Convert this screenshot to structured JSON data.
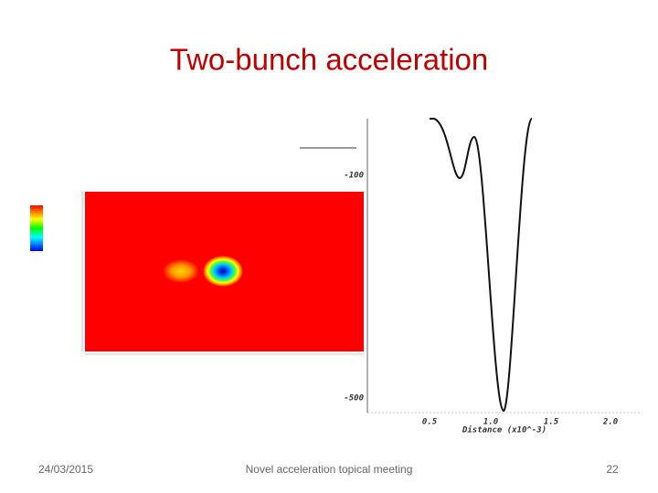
{
  "slide": {
    "title": "Two-bunch acceleration",
    "footer": {
      "date": "24/03/2015",
      "event": "Novel acceleration topical meeting",
      "page": "22"
    }
  },
  "wake_plot": {
    "yticks": [
      "-100",
      "-500"
    ],
    "xticks": [
      "0.5",
      "1.0",
      "1.5",
      "2.0"
    ],
    "xlabel": "Distance (x10^-3)"
  }
}
